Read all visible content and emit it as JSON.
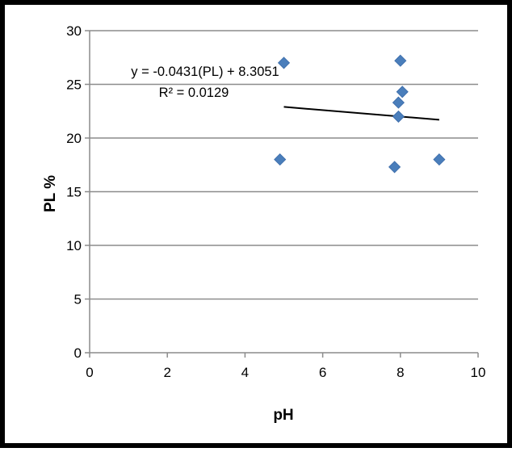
{
  "chart_data": {
    "type": "scatter",
    "title": "",
    "xlabel": "pH",
    "ylabel": "PL %",
    "xlim": [
      0,
      10
    ],
    "ylim": [
      0,
      30
    ],
    "xticks": [
      0,
      2,
      4,
      6,
      8,
      10
    ],
    "yticks": [
      0,
      5,
      10,
      15,
      20,
      25,
      30
    ],
    "grid": "horizontal",
    "legend": "none",
    "colors": {
      "marker": "#4a7ebb",
      "trendline": "#000000",
      "grid": "#8c8c8c",
      "frame": "#000000"
    },
    "series": [
      {
        "points": [
          {
            "x": 4.9,
            "y": 18.0
          },
          {
            "x": 5.0,
            "y": 27.0
          },
          {
            "x": 7.85,
            "y": 17.3
          },
          {
            "x": 7.95,
            "y": 23.3
          },
          {
            "x": 7.95,
            "y": 22.0
          },
          {
            "x": 8.0,
            "y": 27.2
          },
          {
            "x": 8.05,
            "y": 24.3
          },
          {
            "x": 9.0,
            "y": 18.0
          }
        ]
      }
    ],
    "trendline": {
      "type": "linear",
      "x_start": 5.0,
      "y_start": 22.9,
      "x_end": 9.0,
      "y_end": 21.7
    },
    "annotations": {
      "equation": "y = -0.0431(PL) + 8.3051",
      "r_squared": "R² = 0.0129"
    }
  }
}
